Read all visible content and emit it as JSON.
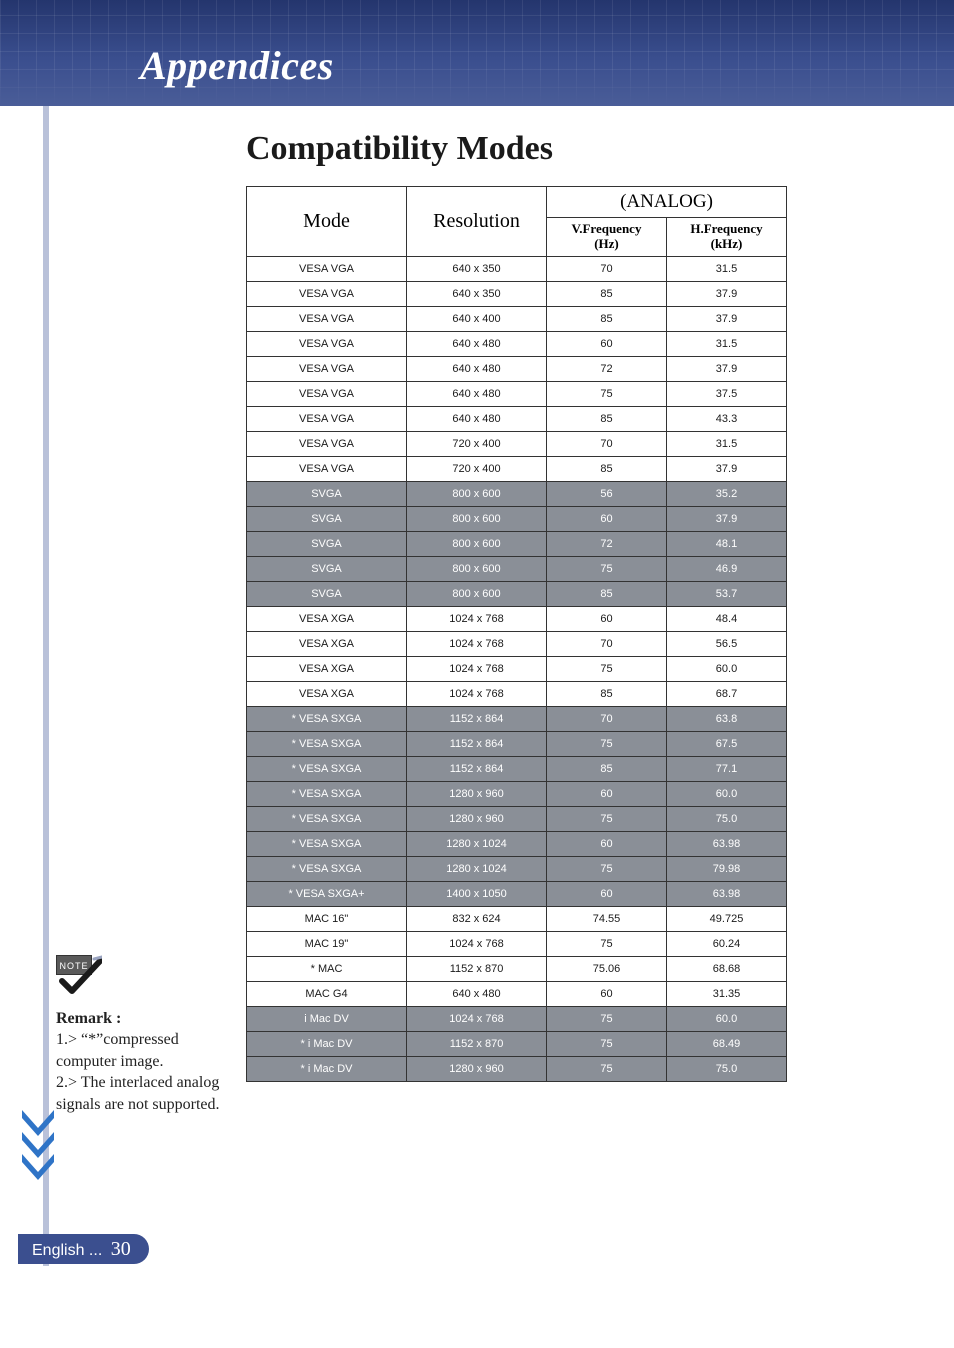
{
  "header": {
    "title": "Appendices"
  },
  "section": {
    "title": "Compatibility Modes"
  },
  "table": {
    "headers": {
      "mode": "Mode",
      "resolution": "Resolution",
      "analog": "(ANALOG)",
      "vfreq_label": "V.Frequency",
      "vfreq_unit": "(Hz)",
      "hfreq_label": "H.Frequency",
      "hfreq_unit": "(kHz)"
    },
    "rows": [
      {
        "mode": "VESA VGA",
        "res": "640 x 350",
        "vf": "70",
        "hf": "31.5",
        "shaded": false
      },
      {
        "mode": "VESA VGA",
        "res": "640 x 350",
        "vf": "85",
        "hf": "37.9",
        "shaded": false
      },
      {
        "mode": "VESA VGA",
        "res": "640 x 400",
        "vf": "85",
        "hf": "37.9",
        "shaded": false
      },
      {
        "mode": "VESA VGA",
        "res": "640 x 480",
        "vf": "60",
        "hf": "31.5",
        "shaded": false
      },
      {
        "mode": "VESA VGA",
        "res": "640 x 480",
        "vf": "72",
        "hf": "37.9",
        "shaded": false
      },
      {
        "mode": "VESA VGA",
        "res": "640 x 480",
        "vf": "75",
        "hf": "37.5",
        "shaded": false
      },
      {
        "mode": "VESA VGA",
        "res": "640 x 480",
        "vf": "85",
        "hf": "43.3",
        "shaded": false
      },
      {
        "mode": "VESA VGA",
        "res": "720 x 400",
        "vf": "70",
        "hf": "31.5",
        "shaded": false
      },
      {
        "mode": "VESA VGA",
        "res": "720 x 400",
        "vf": "85",
        "hf": "37.9",
        "shaded": false
      },
      {
        "mode": "SVGA",
        "res": "800 x 600",
        "vf": "56",
        "hf": "35.2",
        "shaded": true
      },
      {
        "mode": "SVGA",
        "res": "800 x 600",
        "vf": "60",
        "hf": "37.9",
        "shaded": true
      },
      {
        "mode": "SVGA",
        "res": "800 x 600",
        "vf": "72",
        "hf": "48.1",
        "shaded": true
      },
      {
        "mode": "SVGA",
        "res": "800 x 600",
        "vf": "75",
        "hf": "46.9",
        "shaded": true
      },
      {
        "mode": "SVGA",
        "res": "800 x 600",
        "vf": "85",
        "hf": "53.7",
        "shaded": true
      },
      {
        "mode": "VESA XGA",
        "res": "1024 x 768",
        "vf": "60",
        "hf": "48.4",
        "shaded": false
      },
      {
        "mode": "VESA XGA",
        "res": "1024 x 768",
        "vf": "70",
        "hf": "56.5",
        "shaded": false
      },
      {
        "mode": "VESA XGA",
        "res": "1024 x 768",
        "vf": "75",
        "hf": "60.0",
        "shaded": false
      },
      {
        "mode": "VESA XGA",
        "res": "1024 x 768",
        "vf": "85",
        "hf": "68.7",
        "shaded": false
      },
      {
        "mode": "* VESA SXGA",
        "res": "1152 x 864",
        "vf": "70",
        "hf": "63.8",
        "shaded": true
      },
      {
        "mode": "* VESA SXGA",
        "res": "1152 x 864",
        "vf": "75",
        "hf": "67.5",
        "shaded": true
      },
      {
        "mode": "* VESA SXGA",
        "res": "1152 x 864",
        "vf": "85",
        "hf": "77.1",
        "shaded": true
      },
      {
        "mode": "* VESA SXGA",
        "res": "1280 x 960",
        "vf": "60",
        "hf": "60.0",
        "shaded": true
      },
      {
        "mode": "* VESA SXGA",
        "res": "1280 x 960",
        "vf": "75",
        "hf": "75.0",
        "shaded": true
      },
      {
        "mode": "* VESA SXGA",
        "res": "1280 x 1024",
        "vf": "60",
        "hf": "63.98",
        "shaded": true
      },
      {
        "mode": "* VESA SXGA",
        "res": "1280 x 1024",
        "vf": "75",
        "hf": "79.98",
        "shaded": true
      },
      {
        "mode": "* VESA SXGA+",
        "res": "1400 x 1050",
        "vf": "60",
        "hf": "63.98",
        "shaded": true
      },
      {
        "mode": "MAC 16\"",
        "res": "832 x 624",
        "vf": "74.55",
        "hf": "49.725",
        "shaded": false
      },
      {
        "mode": "MAC 19\"",
        "res": "1024 x 768",
        "vf": "75",
        "hf": "60.24",
        "shaded": false
      },
      {
        "mode": "* MAC",
        "res": "1152 x 870",
        "vf": "75.06",
        "hf": "68.68",
        "shaded": false
      },
      {
        "mode": "MAC G4",
        "res": "640 x 480",
        "vf": "60",
        "hf": "31.35",
        "shaded": false
      },
      {
        "mode": "i Mac DV",
        "res": "1024 x 768",
        "vf": "75",
        "hf": "60.0",
        "shaded": true
      },
      {
        "mode": "* i Mac DV",
        "res": "1152 x 870",
        "vf": "75",
        "hf": "68.49",
        "shaded": true
      },
      {
        "mode": "* i Mac DV",
        "res": "1280 x 960",
        "vf": "75",
        "hf": "75.0",
        "shaded": true
      }
    ],
    "colors": {
      "shaded_bg": "#8a8f97",
      "shaded_text": "#ffffff",
      "normal_bg": "#ffffff",
      "normal_text": "#1a1a1a",
      "border": "#333333"
    }
  },
  "sidenote": {
    "badge_text": "NOTE",
    "remark_label": "Remark :",
    "item1": "1.> “*”compressed computer image.",
    "item2": "2.> The interlaced analog signals are not supported."
  },
  "footer": {
    "lang": "English ...",
    "page": "30"
  },
  "colors": {
    "header_grad_top": "#24356d",
    "header_grad_bottom": "#4a5d98",
    "left_rule": "#b9c1d9",
    "footer_pill": "#3b4f8f",
    "chevron": "#2f74c7"
  }
}
